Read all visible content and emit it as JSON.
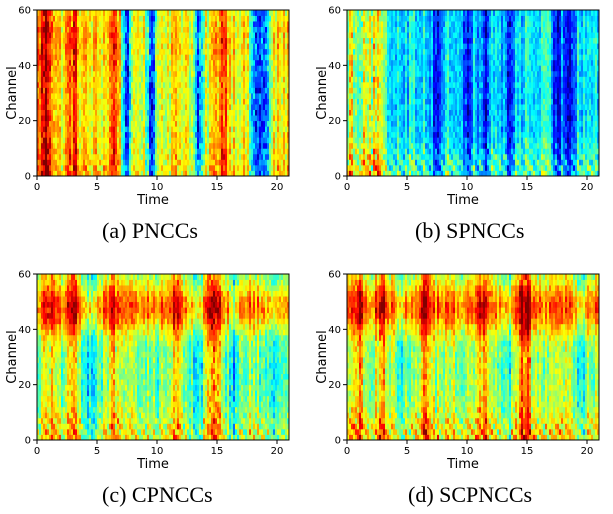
{
  "chart_data": [
    {
      "type": "heatmap",
      "caption": "(a) PNCCs",
      "xlabel": "Time",
      "ylabel": "Channel",
      "xlim": [
        0,
        21
      ],
      "ylim": [
        0,
        60
      ],
      "xticks": [
        0,
        5,
        10,
        15,
        20
      ],
      "yticks": [
        0,
        20,
        40,
        60
      ],
      "colormap": "jet",
      "profile": {
        "base": 0.62,
        "low_channel_boost": 0.1,
        "high_channel_boost": 0.05,
        "dark_times": [
          7.5,
          9.5,
          13.5,
          18.2,
          19.0
        ],
        "dark_strength": 0.55,
        "hot_times": [
          0.5,
          1.0,
          3.0,
          6.5,
          15.5
        ],
        "hot_strength": 0.25
      }
    },
    {
      "type": "heatmap",
      "caption": "(b) SPNCCs",
      "xlabel": "Time",
      "ylabel": "Channel",
      "xlim": [
        0,
        21
      ],
      "ylim": [
        0,
        60
      ],
      "xticks": [
        0,
        5,
        10,
        15,
        20
      ],
      "yticks": [
        0,
        20,
        40,
        60
      ],
      "colormap": "jet",
      "profile": {
        "base": 0.36,
        "low_channel_boost": 0.22,
        "high_channel_boost": 0.02,
        "dark_times": [
          7.5,
          10.0,
          11.5,
          13.5,
          17.5,
          18.5
        ],
        "dark_strength": 0.3,
        "hot_times": [
          0.3,
          1.5,
          2.5
        ],
        "hot_strength": 0.35
      }
    },
    {
      "type": "heatmap",
      "caption": "(c) CPNCCs",
      "xlabel": "Time",
      "ylabel": "Channel",
      "xlim": [
        0,
        21
      ],
      "ylim": [
        0,
        60
      ],
      "xticks": [
        0,
        5,
        10,
        15,
        20
      ],
      "yticks": [
        0,
        20,
        40,
        60
      ],
      "colormap": "jet",
      "profile": {
        "base": 0.48,
        "low_channel_boost": 0.2,
        "high_channel_boost": 0.28,
        "dark_times": [
          4.5,
          13.5,
          16.5,
          19.5
        ],
        "dark_strength": 0.18,
        "hot_times": [
          1.0,
          3.0,
          6.5,
          11.5,
          14.5,
          15.0
        ],
        "hot_strength": 0.22
      }
    },
    {
      "type": "heatmap",
      "caption": "(d) SCPNCCs",
      "xlabel": "Time",
      "ylabel": "Channel",
      "xlim": [
        0,
        21
      ],
      "ylim": [
        0,
        60
      ],
      "xticks": [
        0,
        5,
        10,
        15,
        20
      ],
      "yticks": [
        0,
        20,
        40,
        60
      ],
      "colormap": "jet",
      "profile": {
        "base": 0.52,
        "low_channel_boost": 0.24,
        "high_channel_boost": 0.26,
        "dark_times": [
          4.5,
          13.5,
          19.5
        ],
        "dark_strength": 0.16,
        "hot_times": [
          1.0,
          3.0,
          6.5,
          11.5,
          14.5,
          15.0
        ],
        "hot_strength": 0.22
      }
    }
  ]
}
